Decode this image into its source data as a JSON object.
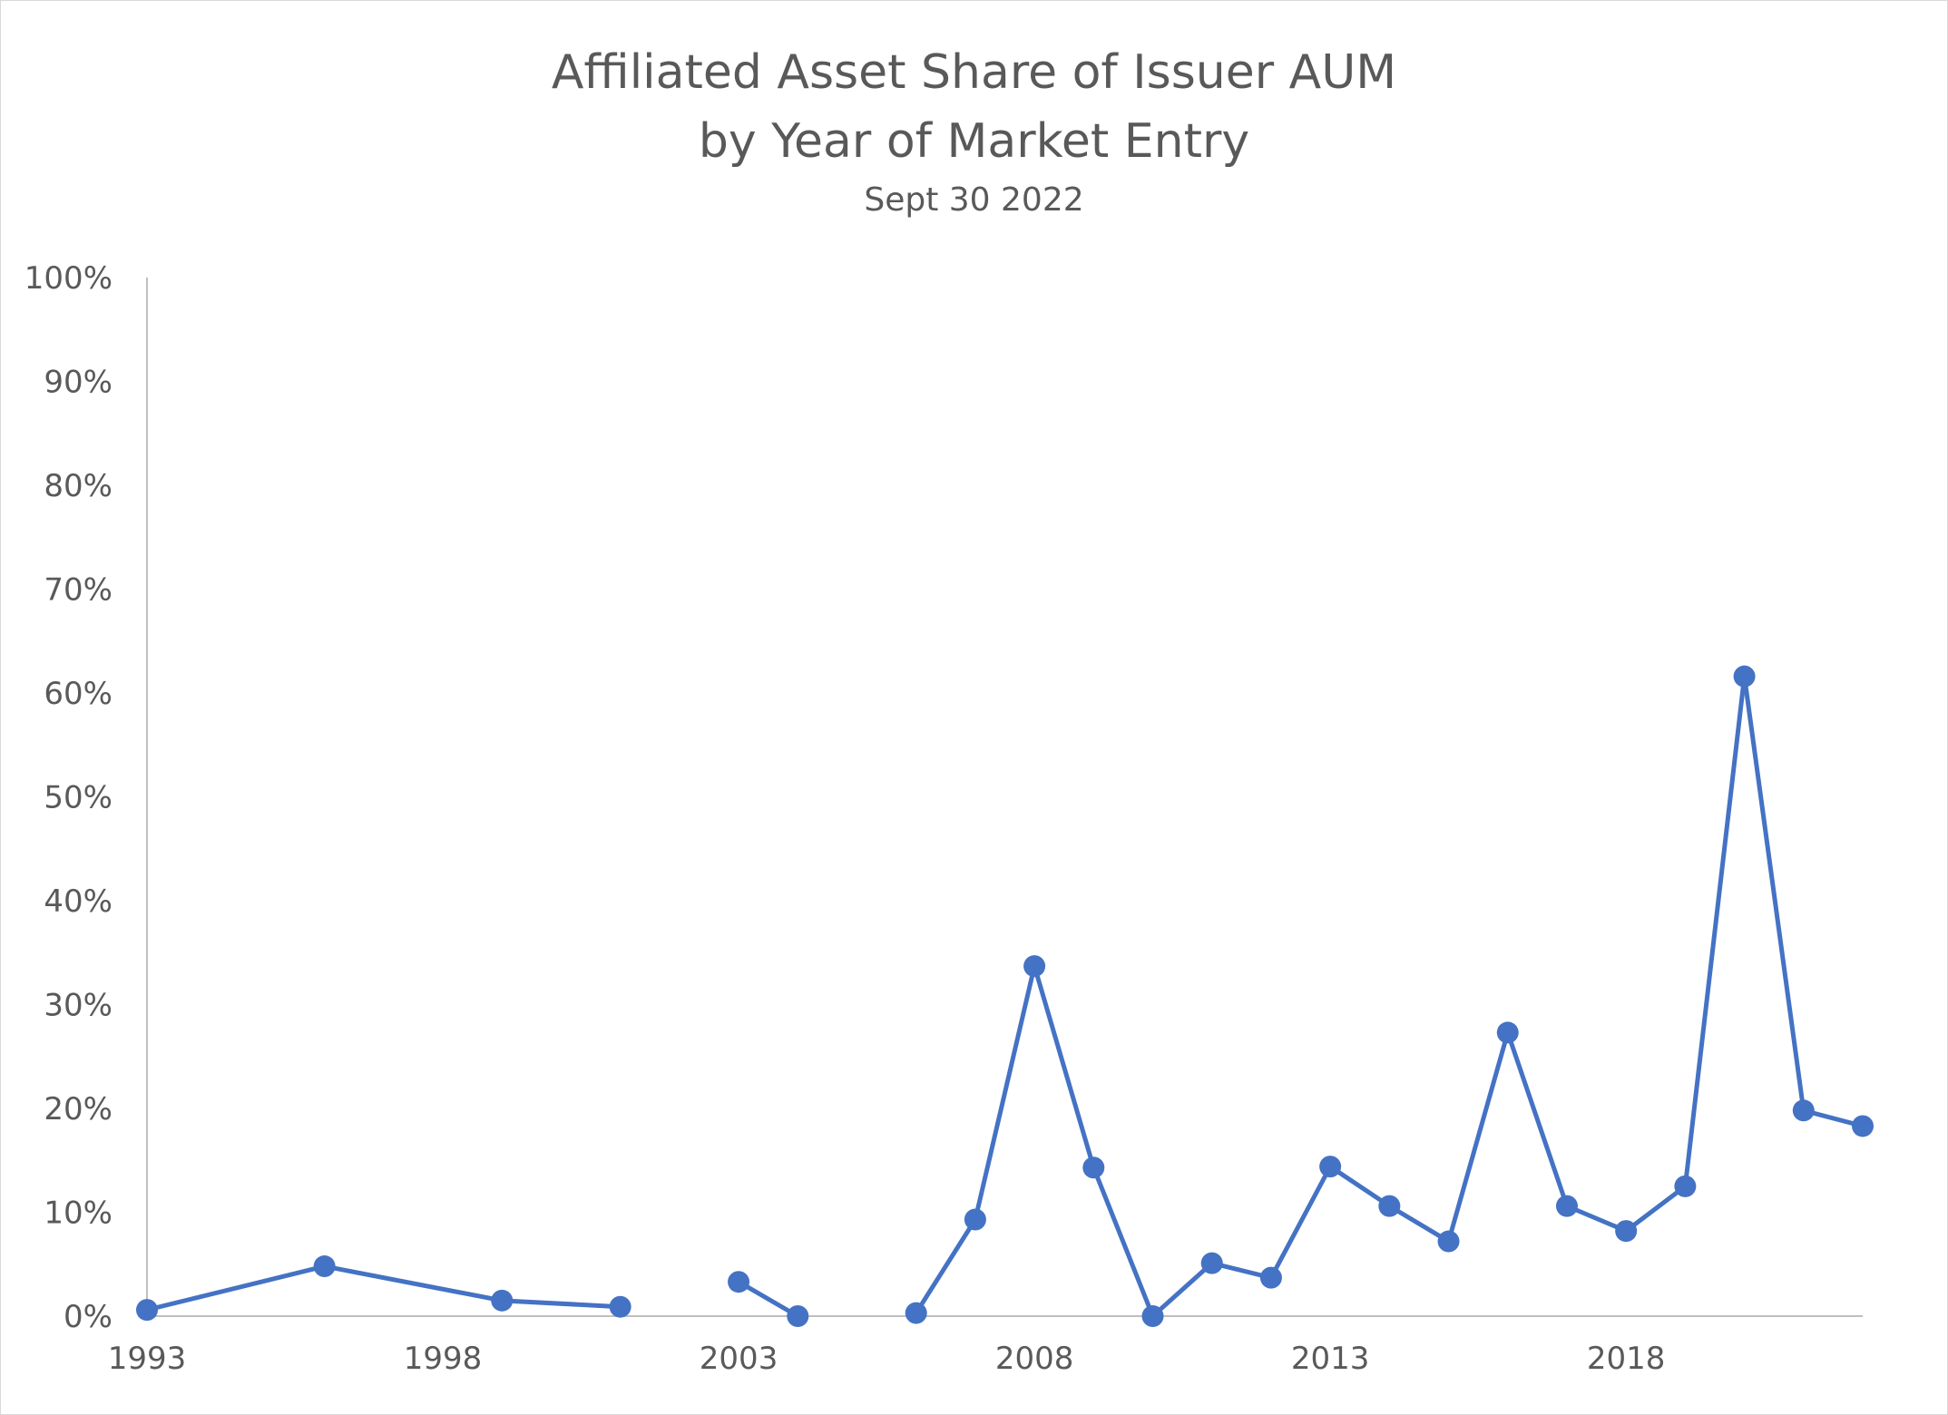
{
  "chart_data": {
    "type": "line",
    "title_lines": [
      "Affiliated Asset Share of Issuer AUM",
      "by Year of Market Entry"
    ],
    "subtitle": "Sept 30 2022",
    "xlabel": "",
    "ylabel": "",
    "x_ticks": [
      1993,
      1998,
      2003,
      2008,
      2013,
      2018
    ],
    "x_tick_labels": [
      "1993",
      "1998",
      "2003",
      "2008",
      "2013",
      "2018"
    ],
    "xlim": [
      1993,
      2022
    ],
    "y_ticks": [
      0,
      10,
      20,
      30,
      40,
      50,
      60,
      70,
      80,
      90,
      100
    ],
    "y_tick_labels": [
      "0%",
      "10%",
      "20%",
      "30%",
      "40%",
      "50%",
      "60%",
      "70%",
      "80%",
      "90%",
      "100%"
    ],
    "ylim": [
      0,
      100
    ],
    "y_unit": "percent",
    "grid": false,
    "legend": "none",
    "color": "#4472c4",
    "series": [
      {
        "values": [
          {
            "x": 1993,
            "y": 0.6
          },
          {
            "x": 1994,
            "y": null
          },
          {
            "x": 1995,
            "y": null
          },
          {
            "x": 1996,
            "y": 4.8
          },
          {
            "x": 1997,
            "y": null
          },
          {
            "x": 1998,
            "y": null
          },
          {
            "x": 1999,
            "y": 1.5
          },
          {
            "x": 2000,
            "y": null
          },
          {
            "x": 2001,
            "y": 0.9
          },
          {
            "x": 2002,
            "y": null
          },
          {
            "x": 2003,
            "y": 3.3
          },
          {
            "x": 2004,
            "y": 0.0
          },
          {
            "x": 2005,
            "y": null
          },
          {
            "x": 2006,
            "y": 0.3
          },
          {
            "x": 2007,
            "y": 9.3
          },
          {
            "x": 2008,
            "y": 33.7
          },
          {
            "x": 2009,
            "y": 14.3
          },
          {
            "x": 2010,
            "y": 0.0
          },
          {
            "x": 2011,
            "y": 5.1
          },
          {
            "x": 2012,
            "y": 3.7
          },
          {
            "x": 2013,
            "y": 14.4
          },
          {
            "x": 2014,
            "y": 10.6
          },
          {
            "x": 2015,
            "y": 7.2
          },
          {
            "x": 2016,
            "y": 27.3
          },
          {
            "x": 2017,
            "y": 10.6
          },
          {
            "x": 2018,
            "y": 8.2
          },
          {
            "x": 2019,
            "y": 12.5
          },
          {
            "x": 2020,
            "y": 61.6
          },
          {
            "x": 2021,
            "y": 19.8
          },
          {
            "x": 2022,
            "y": 18.3
          }
        ]
      }
    ]
  }
}
